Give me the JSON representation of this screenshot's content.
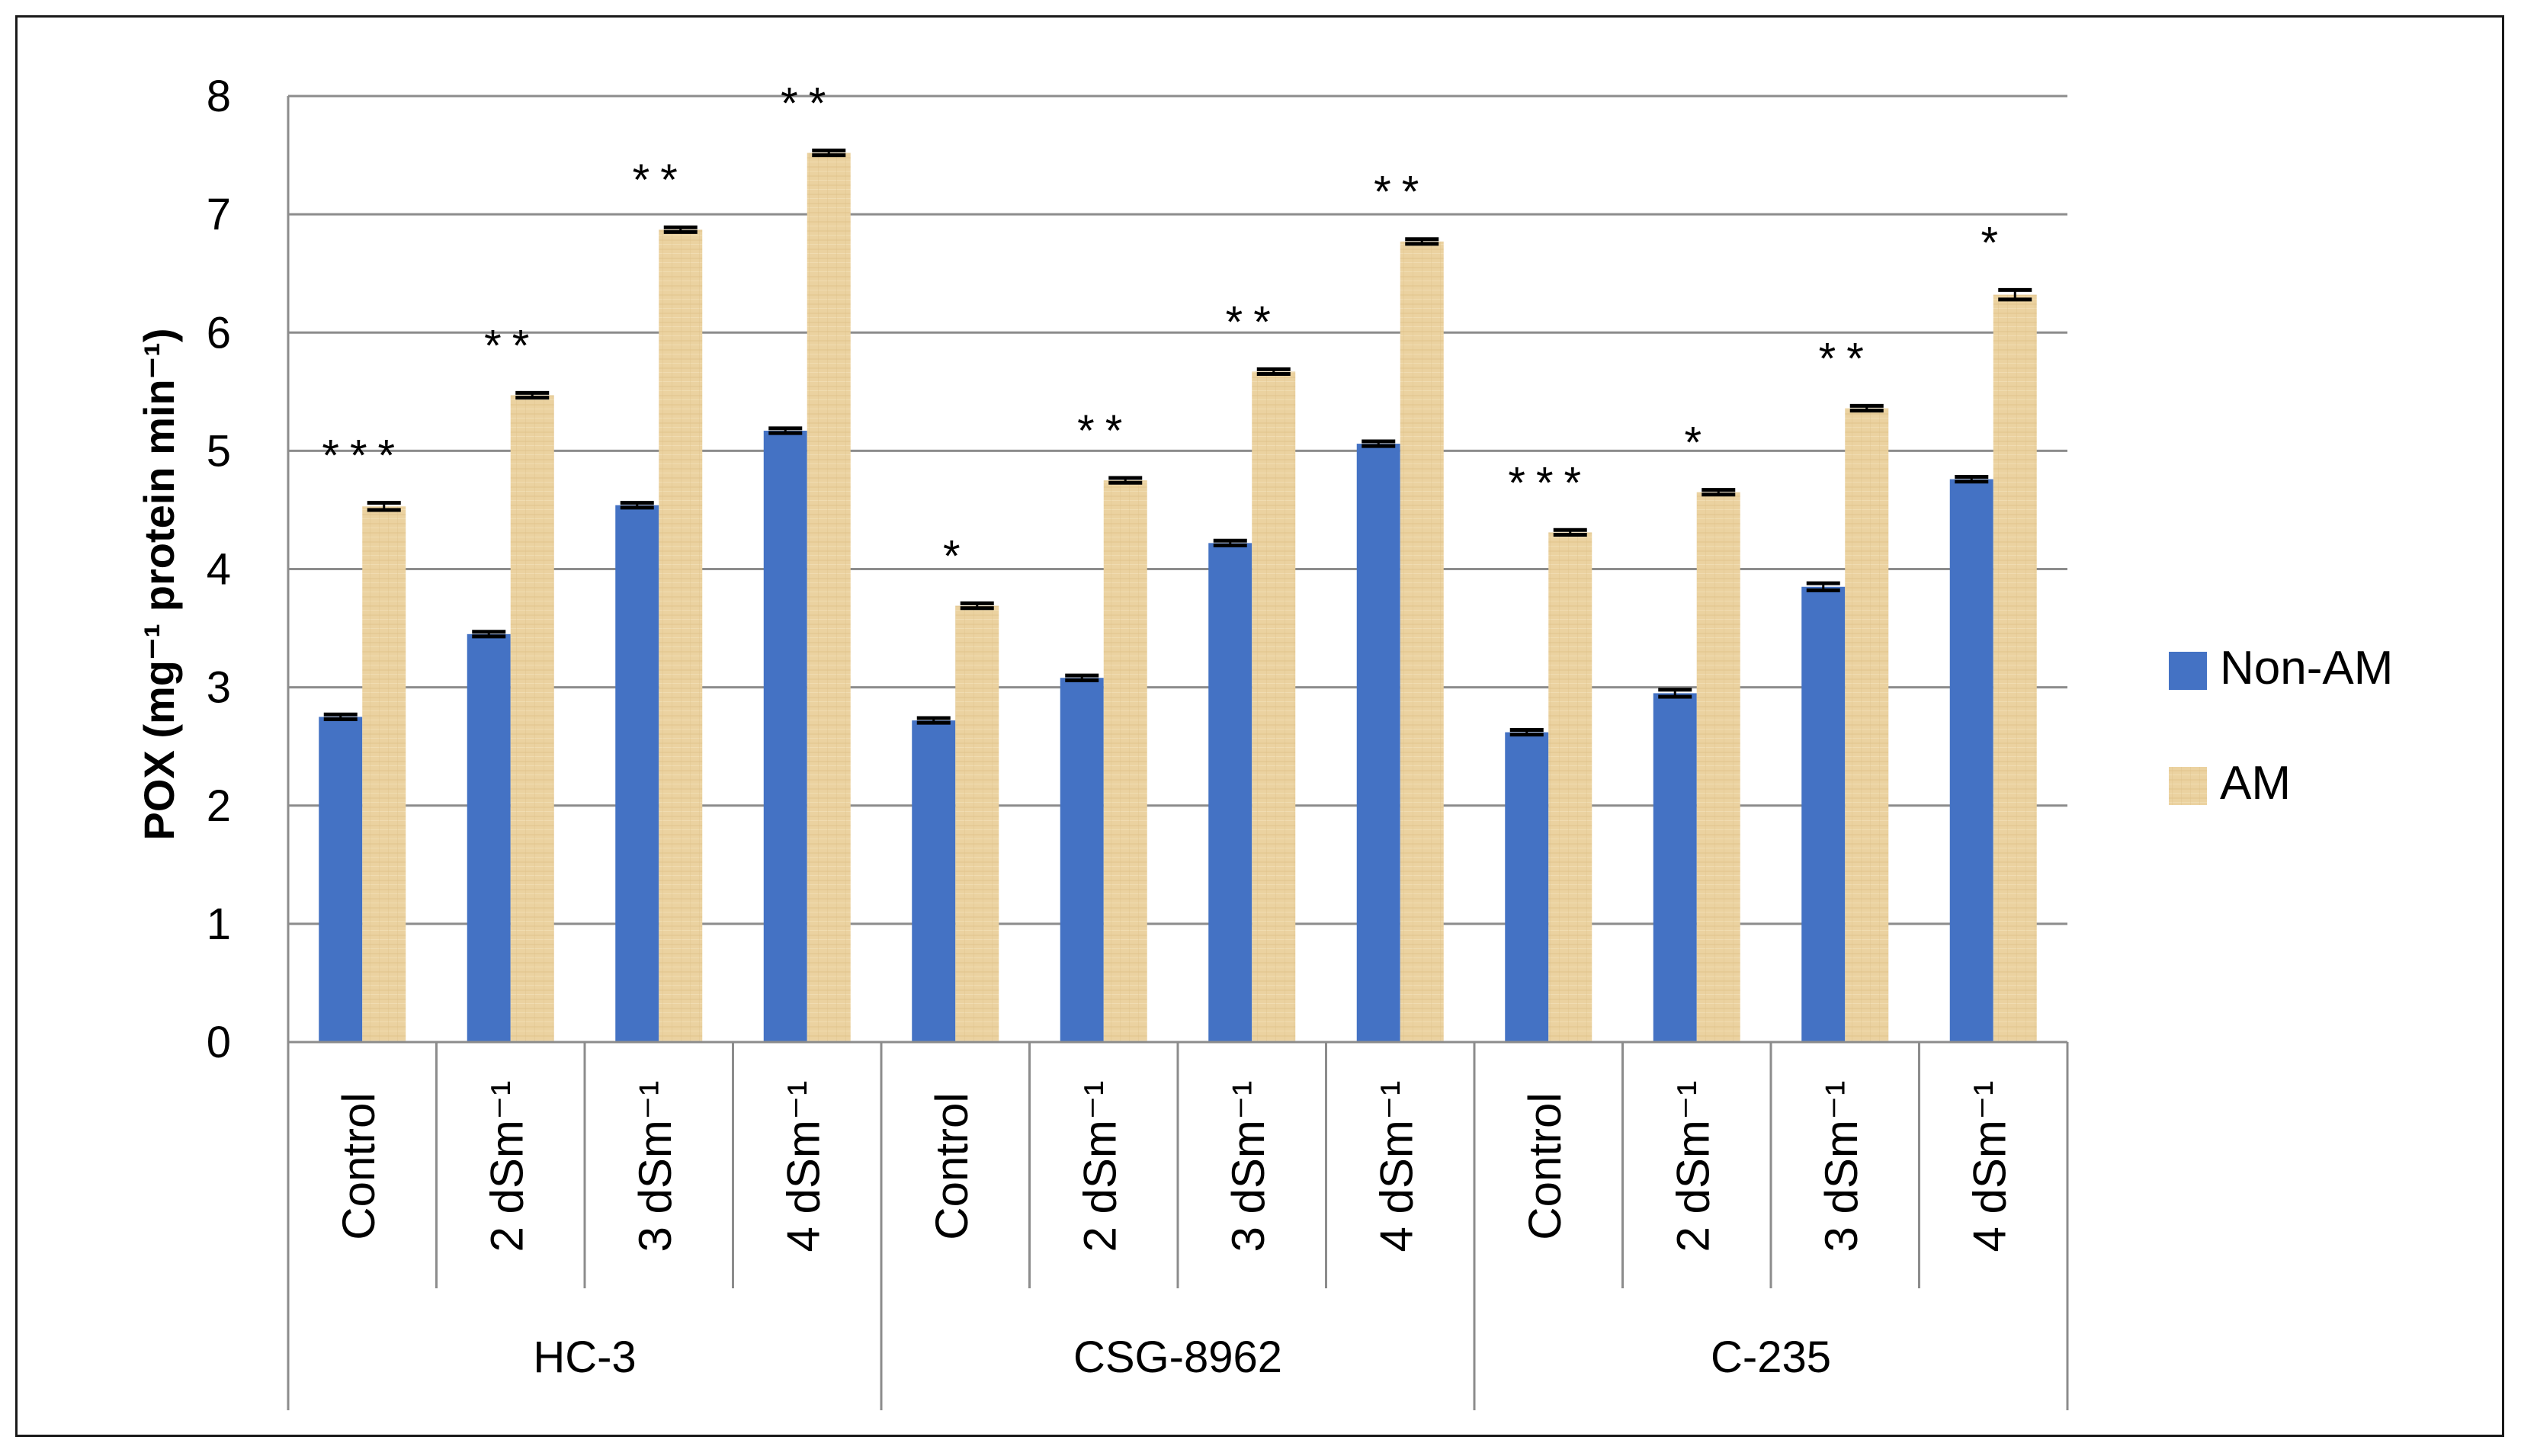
{
  "chart_data": {
    "type": "bar",
    "title": "",
    "xlabel": "",
    "ylabel": "POX (mg⁻¹ protein min⁻¹)",
    "ylim": [
      0,
      8
    ],
    "yticks": [
      0,
      1,
      2,
      3,
      4,
      5,
      6,
      7,
      8
    ],
    "grid": true,
    "legend_position": "right",
    "groups": [
      "HC-3",
      "CSG-8962",
      "C-235"
    ],
    "subcategories": [
      "Control",
      "2 dSm⁻¹",
      "3 dSm⁻¹",
      "4 dSm⁻¹"
    ],
    "series": [
      {
        "name": "Non-AM",
        "color": "#4472c4",
        "values": [
          2.75,
          3.45,
          4.54,
          5.17,
          2.72,
          3.08,
          4.22,
          5.06,
          2.62,
          2.95,
          3.85,
          4.76
        ],
        "errors": [
          0.02,
          0.02,
          0.02,
          0.02,
          0.02,
          0.02,
          0.02,
          0.02,
          0.02,
          0.03,
          0.03,
          0.02
        ]
      },
      {
        "name": "AM",
        "color": "#ebd2a0",
        "values": [
          4.53,
          5.47,
          6.87,
          7.52,
          3.69,
          4.75,
          5.67,
          6.77,
          4.31,
          4.65,
          5.36,
          6.32
        ],
        "errors": [
          0.03,
          0.02,
          0.02,
          0.02,
          0.02,
          0.02,
          0.02,
          0.02,
          0.02,
          0.02,
          0.02,
          0.04
        ]
      }
    ],
    "significance": [
      "***",
      "**",
      "**",
      "**",
      "*",
      "**",
      "**",
      "**",
      "***",
      "*",
      "**",
      "*"
    ]
  }
}
